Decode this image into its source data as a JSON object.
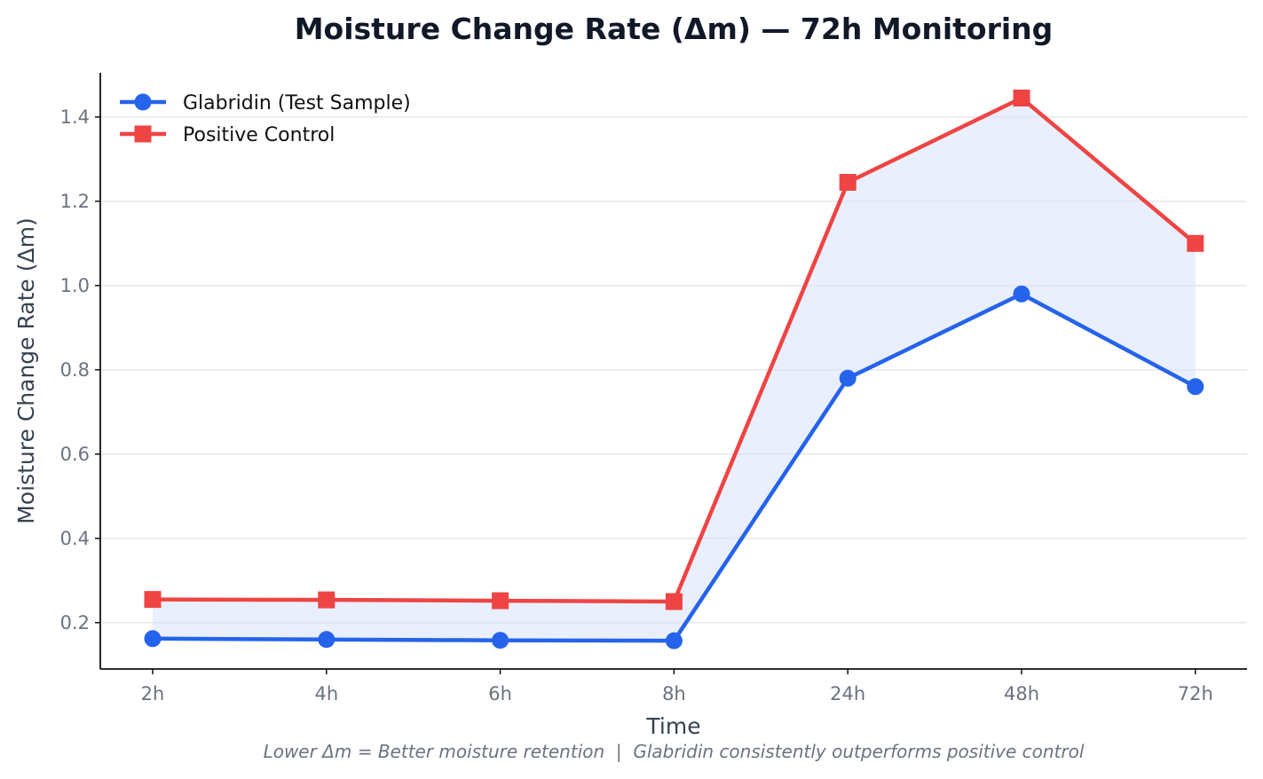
{
  "chart_data": {
    "type": "line",
    "title": "Moisture Change Rate (Δm) — 72h Monitoring",
    "xlabel": "Time",
    "ylabel": "Moisture Change Rate (Δm)",
    "categories": [
      "2h",
      "4h",
      "6h",
      "8h",
      "24h",
      "48h",
      "72h"
    ],
    "series": [
      {
        "name": "Glabridin (Test Sample)",
        "values": [
          0.162,
          0.16,
          0.158,
          0.157,
          0.78,
          0.98,
          0.76
        ],
        "color": "#2563eb",
        "marker": "circle"
      },
      {
        "name": "Positive Control",
        "values": [
          0.255,
          0.254,
          0.252,
          0.25,
          1.245,
          1.445,
          1.1
        ],
        "color": "#ef4444",
        "marker": "square"
      }
    ],
    "ylim": [
      0.09,
      1.505
    ],
    "yticks": [
      0.2,
      0.4,
      0.6,
      0.8,
      1.0,
      1.2,
      1.4
    ],
    "ytick_labels": [
      "0.2",
      "0.4",
      "0.6",
      "0.8",
      "1.0",
      "1.2",
      "1.4"
    ],
    "grid": "horizontal",
    "legend_position": "top-left",
    "shaded_region": "between series",
    "shade_color": "#dbe4fb",
    "annotation": "Lower Δm = Better moisture retention  |  Glabridin consistently outperforms positive control"
  }
}
